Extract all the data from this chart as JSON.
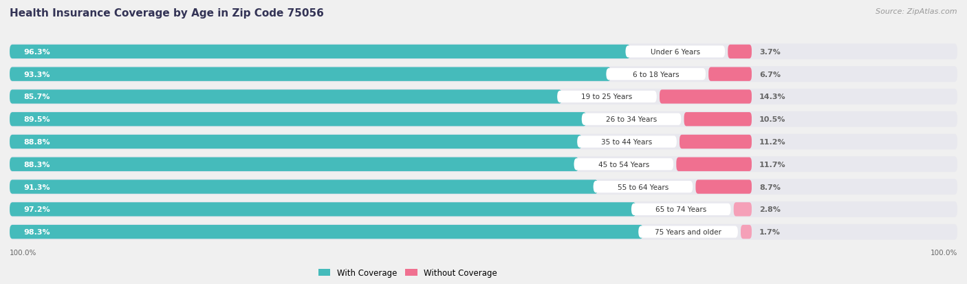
{
  "title": "Health Insurance Coverage by Age in Zip Code 75056",
  "source": "Source: ZipAtlas.com",
  "categories": [
    "Under 6 Years",
    "6 to 18 Years",
    "19 to 25 Years",
    "26 to 34 Years",
    "35 to 44 Years",
    "45 to 54 Years",
    "55 to 64 Years",
    "65 to 74 Years",
    "75 Years and older"
  ],
  "with_coverage": [
    96.3,
    93.3,
    85.7,
    89.5,
    88.8,
    88.3,
    91.3,
    97.2,
    98.3
  ],
  "without_coverage": [
    3.7,
    6.7,
    14.3,
    10.5,
    11.2,
    11.7,
    8.7,
    2.8,
    1.7
  ],
  "with_coverage_color": "#45BBBB",
  "without_coverage_color": "#F07090",
  "without_coverage_color_light": "#F5A0B8",
  "bg_color": "#f0f0f0",
  "bar_bg_color": "#e0e0e8",
  "row_bg_color": "#e8e8ee",
  "legend_with": "With Coverage",
  "legend_without": "Without Coverage",
  "label_color_with": "#ffffff",
  "label_color_cat": "#333333",
  "label_color_pct": "#666666",
  "axis_label_left": "100.0%",
  "axis_label_right": "100.0%",
  "title_color": "#333355",
  "source_color": "#999999"
}
